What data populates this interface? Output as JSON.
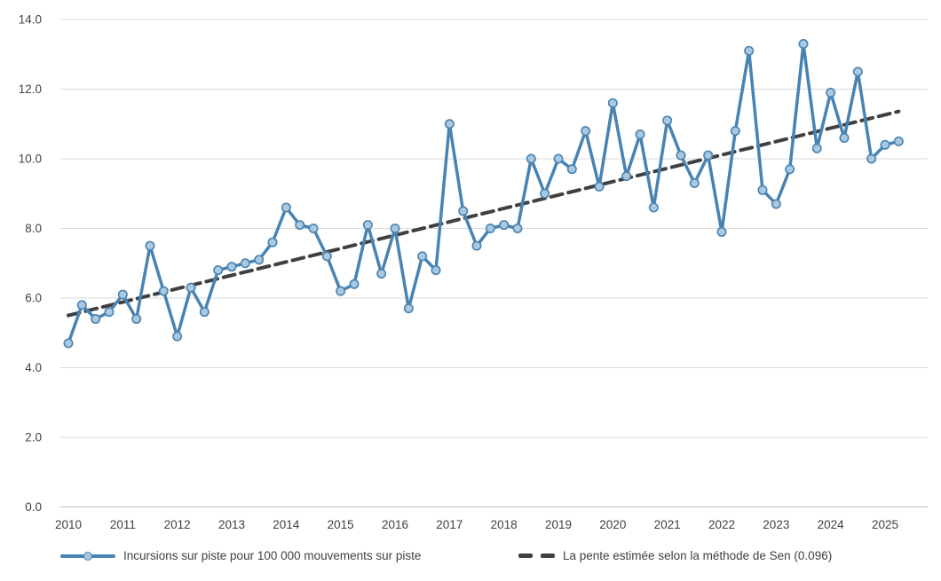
{
  "chart_data": {
    "type": "line",
    "title": "",
    "x_unit": "quarter",
    "quarters": [
      "2010 T1",
      "2010 T2",
      "2010 T3",
      "2010 T4",
      "2011 T1",
      "2011 T2",
      "2011 T3",
      "2011 T4",
      "2012 T1",
      "2012 T2",
      "2012 T3",
      "2012 T4",
      "2013 T1",
      "2013 T2",
      "2013 T3",
      "2013 T4",
      "2014 T1",
      "2014 T2",
      "2014 T3",
      "2014 T4",
      "2015 T1",
      "2015 T2",
      "2015 T3",
      "2015 T4",
      "2016 T1",
      "2016 T2",
      "2016 T3",
      "2016 T4",
      "2017 T1",
      "2017 T2",
      "2017 T3",
      "2017 T4",
      "2018 T1",
      "2018 T2",
      "2018 T3",
      "2018 T4",
      "2019 T1",
      "2019 T2",
      "2019 T3",
      "2019 T4",
      "2020 T1",
      "2020 T2",
      "2020 T3",
      "2020 T4",
      "2021 T1",
      "2021 T2",
      "2021 T3",
      "2021 T4",
      "2022 T1",
      "2022 T2",
      "2022 T3",
      "2022 T4",
      "2023 T1",
      "2023 T2",
      "2023 T3",
      "2023 T4",
      "2024 T1",
      "2024 T2",
      "2024 T3",
      "2024 T4",
      "2025 T1",
      "2025 T2"
    ],
    "series": [
      {
        "name": "Incursions sur piste pour 100 000 mouvements sur piste",
        "type": "line-markers",
        "color": "#4883B2",
        "marker_fill": "#AAC8E0",
        "values": [
          4.7,
          5.8,
          5.4,
          5.6,
          6.1,
          5.4,
          7.5,
          6.2,
          4.9,
          6.3,
          5.6,
          6.8,
          6.9,
          7.0,
          7.1,
          7.6,
          8.6,
          8.1,
          8.0,
          7.2,
          6.2,
          6.4,
          8.1,
          6.7,
          8.0,
          5.7,
          7.2,
          6.8,
          11.0,
          8.5,
          7.5,
          8.0,
          8.1,
          8.0,
          10.0,
          9.0,
          10.0,
          9.7,
          10.8,
          9.2,
          11.6,
          9.5,
          10.7,
          8.6,
          11.1,
          10.1,
          9.3,
          10.1,
          7.9,
          10.8,
          13.1,
          9.1,
          8.7,
          9.7,
          13.3,
          10.3,
          11.9,
          10.6,
          12.5,
          10.0,
          10.4,
          10.5
        ]
      },
      {
        "name": "La pente estimée selon la méthode de Sen (0.096)",
        "type": "trend-dashed",
        "color": "#404040",
        "slope_per_quarter": 0.096,
        "start_value": 5.5,
        "end_value": 11.36
      }
    ],
    "ylim": [
      0,
      14
    ],
    "ytick_step": 2,
    "ytick_labels": [
      "0.0",
      "2.0",
      "4.0",
      "6.0",
      "8.0",
      "10.0",
      "12.0",
      "14.0"
    ],
    "xtick_labels": [
      "2010",
      "2011",
      "2012",
      "2013",
      "2014",
      "2015",
      "2016",
      "2017",
      "2018",
      "2019",
      "2020",
      "2021",
      "2022",
      "2023",
      "2024",
      "2025"
    ],
    "grid_color": "#D9D9D9",
    "axis_line_color": "#BFBFBF",
    "axis_text_color": "#404040",
    "grid": true,
    "legend_position": "bottom"
  }
}
